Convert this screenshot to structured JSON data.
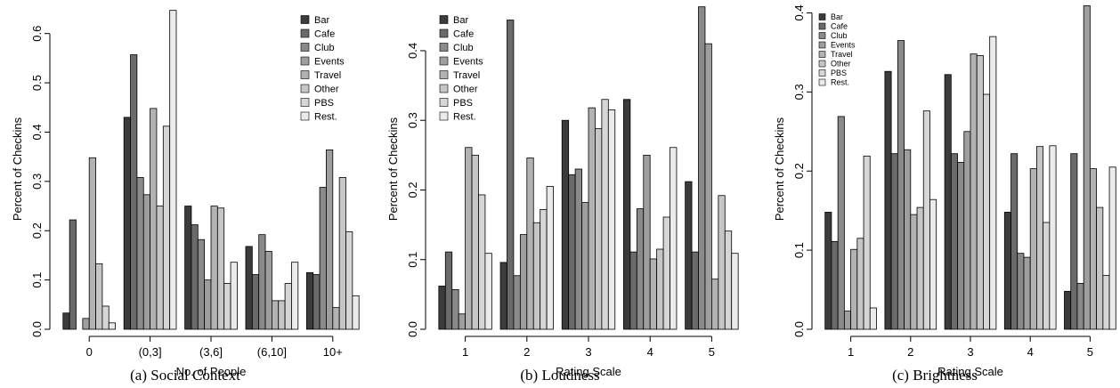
{
  "colors": [
    "#3b3b3b",
    "#6a6a6a",
    "#8a8a8a",
    "#9e9e9e",
    "#b2b2b2",
    "#c6c6c6",
    "#d6d6d6",
    "#ebebeb"
  ],
  "chart_data": [
    {
      "type": "bar",
      "caption": "(a) Social Context",
      "xlabel": "No. of People",
      "ylabel": "Percent of Checkins",
      "categories": [
        "0",
        "(0,3]",
        "(3,6]",
        "(6,10]",
        "10+"
      ],
      "ylim": [
        0,
        0.65
      ],
      "yticks": [
        "0.0",
        "0.1",
        "0.2",
        "0.3",
        "0.4",
        "0.5",
        "0.6"
      ],
      "legend_position": "top-right",
      "series": [
        {
          "name": "Bar",
          "values": [
            0.033,
            0.43,
            0.25,
            0.168,
            0.115
          ]
        },
        {
          "name": "Cafe",
          "values": [
            0.222,
            0.557,
            0.212,
            0.111,
            0.111
          ]
        },
        {
          "name": "Club",
          "values": [
            0.0,
            0.308,
            0.182,
            0.192,
            0.288
          ]
        },
        {
          "name": "Events",
          "values": [
            0.022,
            0.273,
            0.1,
            0.158,
            0.364
          ]
        },
        {
          "name": "Travel",
          "values": [
            0.348,
            0.448,
            0.25,
            0.058,
            0.044
          ]
        },
        {
          "name": "Other",
          "values": [
            0.133,
            0.25,
            0.246,
            0.058,
            0.308
          ]
        },
        {
          "name": "PBS",
          "values": [
            0.047,
            0.412,
            0.093,
            0.093,
            0.198
          ]
        },
        {
          "name": "Rest.",
          "values": [
            0.013,
            0.647,
            0.136,
            0.136,
            0.068
          ]
        }
      ]
    },
    {
      "type": "bar",
      "caption": "(b) Loudness",
      "xlabel": "Rating Scale",
      "ylabel": "Percent of Checkins",
      "categories": [
        "1",
        "2",
        "3",
        "4",
        "5"
      ],
      "ylim": [
        0,
        0.46
      ],
      "yticks": [
        "0.0",
        "0.1",
        "0.2",
        "0.3",
        "0.4"
      ],
      "legend_position": "top-left",
      "series": [
        {
          "name": "Bar",
          "values": [
            0.062,
            0.096,
            0.3,
            0.33,
            0.212
          ]
        },
        {
          "name": "Cafe",
          "values": [
            0.111,
            0.444,
            0.222,
            0.111,
            0.111
          ]
        },
        {
          "name": "Club",
          "values": [
            0.057,
            0.077,
            0.23,
            0.173,
            0.463
          ]
        },
        {
          "name": "Events",
          "values": [
            0.022,
            0.136,
            0.182,
            0.25,
            0.41
          ]
        },
        {
          "name": "Travel",
          "values": [
            0.261,
            0.246,
            0.318,
            0.101,
            0.072
          ]
        },
        {
          "name": "Other",
          "values": [
            0.25,
            0.153,
            0.288,
            0.115,
            0.192
          ]
        },
        {
          "name": "PBS",
          "values": [
            0.193,
            0.172,
            0.33,
            0.161,
            0.141
          ]
        },
        {
          "name": "Rest.",
          "values": [
            0.109,
            0.205,
            0.315,
            0.261,
            0.109
          ]
        }
      ]
    },
    {
      "type": "bar",
      "caption": "(c) Brightness",
      "xlabel": "Rating Scale",
      "ylabel": "Percent of Checkins",
      "categories": [
        "1",
        "2",
        "3",
        "4",
        "5"
      ],
      "ylim": [
        0,
        0.405
      ],
      "yticks": [
        "0.0",
        "0.1",
        "0.2",
        "0.3",
        "0.4"
      ],
      "legend_position": "top-left",
      "series": [
        {
          "name": "Bar",
          "values": [
            0.148,
            0.326,
            0.322,
            0.148,
            0.048
          ]
        },
        {
          "name": "Cafe",
          "values": [
            0.111,
            0.222,
            0.222,
            0.222,
            0.222
          ]
        },
        {
          "name": "Club",
          "values": [
            0.269,
            0.365,
            0.211,
            0.096,
            0.058
          ]
        },
        {
          "name": "Events",
          "values": [
            0.023,
            0.227,
            0.25,
            0.091,
            0.409
          ]
        },
        {
          "name": "Travel",
          "values": [
            0.101,
            0.145,
            0.348,
            0.203,
            0.203
          ]
        },
        {
          "name": "Other",
          "values": [
            0.115,
            0.154,
            0.346,
            0.231,
            0.154
          ]
        },
        {
          "name": "PBS",
          "values": [
            0.219,
            0.276,
            0.297,
            0.135,
            0.068
          ]
        },
        {
          "name": "Rest.",
          "values": [
            0.027,
            0.164,
            0.37,
            0.232,
            0.205
          ]
        }
      ]
    }
  ]
}
